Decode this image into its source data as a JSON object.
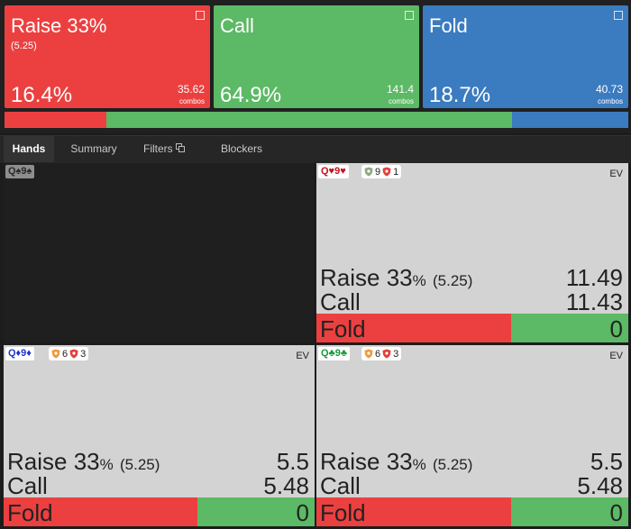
{
  "actions": [
    {
      "name": "Raise 33%",
      "sizing": "(5.25)",
      "frequency": 16.4,
      "frequency_label": "16.4%",
      "combos": 35.62,
      "combos_label": "combos",
      "color": "#ec4040"
    },
    {
      "name": "Call",
      "frequency": 64.9,
      "frequency_label": "64.9%",
      "combos": 141.4,
      "combos_label": "combos",
      "color": "#5cb965"
    },
    {
      "name": "Fold",
      "frequency": 18.7,
      "frequency_label": "18.7%",
      "combos": 40.73,
      "combos_label": "combos",
      "color": "#3b7bc0"
    }
  ],
  "tabs": [
    "Hands",
    "Summary",
    "Filters",
    "Blockers"
  ],
  "hands": [
    {
      "cards": "Q♠9♠",
      "color": "#2a2a2a"
    },
    {
      "cards": "Q♥9♥",
      "color": "#c4101c",
      "blockers": [
        {
          "count": 9,
          "color": "#8fa87e"
        },
        {
          "count": 1,
          "color": "#e0413a"
        }
      ],
      "ev_label": "EV",
      "rows": [
        {
          "action": "Raise 33",
          "unit": "%",
          "sizing": "(5.25)",
          "ev": 11.49
        },
        {
          "action": "Call",
          "ev": 11.43
        },
        {
          "action": "Fold",
          "ev": 0
        }
      ]
    },
    {
      "cards": "Q♦9♦",
      "color": "#1f36c8",
      "blockers": [
        {
          "count": 6,
          "color": "#ef9a3a"
        },
        {
          "count": 3,
          "color": "#e0413a"
        }
      ],
      "ev_label": "EV",
      "rows": [
        {
          "action": "Raise 33",
          "unit": "%",
          "sizing": "(5.25)",
          "ev": 5.5
        },
        {
          "action": "Call",
          "ev": 5.48
        },
        {
          "action": "Fold",
          "ev": 0
        }
      ]
    },
    {
      "cards": "Q♣9♣",
      "color": "#139a3a",
      "blockers": [
        {
          "count": 6,
          "color": "#ef9a3a"
        },
        {
          "count": 3,
          "color": "#e0413a"
        }
      ],
      "ev_label": "EV",
      "rows": [
        {
          "action": "Raise 33",
          "unit": "%",
          "sizing": "(5.25)",
          "ev": 5.5
        },
        {
          "action": "Call",
          "ev": 5.48
        },
        {
          "action": "Fold",
          "ev": 0
        }
      ]
    }
  ]
}
